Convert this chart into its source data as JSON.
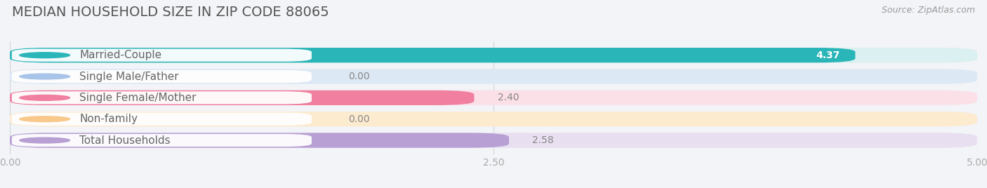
{
  "title": "MEDIAN HOUSEHOLD SIZE IN ZIP CODE 88065",
  "source": "Source: ZipAtlas.com",
  "categories": [
    "Married-Couple",
    "Single Male/Father",
    "Single Female/Mother",
    "Non-family",
    "Total Households"
  ],
  "values": [
    4.37,
    0.0,
    2.4,
    0.0,
    2.58
  ],
  "bar_colors": [
    "#2ab5b8",
    "#a8c4e8",
    "#f07fa0",
    "#f8c98a",
    "#b89fd4"
  ],
  "bar_bg_colors": [
    "#daf0f1",
    "#dde8f5",
    "#fce0e8",
    "#fdebd0",
    "#e8dff0"
  ],
  "background_color": "#f2f4f7",
  "row_bg_color": "#eaedf0",
  "xlim": [
    0,
    5.0
  ],
  "xticks": [
    0.0,
    2.5,
    5.0
  ],
  "xtick_labels": [
    "0.00",
    "2.50",
    "5.00"
  ],
  "title_fontsize": 14,
  "source_fontsize": 9,
  "label_fontsize": 11,
  "value_fontsize": 10,
  "bar_height": 0.7,
  "value_inside_color": "#ffffff",
  "value_outside_color": "#888888",
  "tick_color": "#aaaaaa",
  "label_text_color": "#666666",
  "grid_color": "#d0d4d8"
}
